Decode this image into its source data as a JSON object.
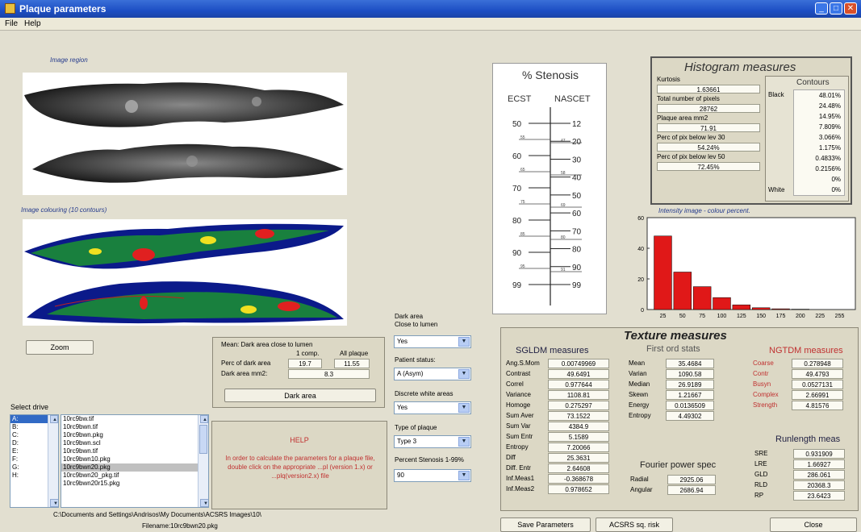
{
  "window": {
    "title": "Plaque parameters"
  },
  "menu": [
    "File",
    "Help"
  ],
  "image_region_label": "Image region",
  "colouring_label": "Image colouring (10 contours)",
  "zoom_label": "Zoom",
  "dark_area": {
    "title": "Mean: Dark area close to lumen",
    "col1": "1 comp.",
    "col2": "All plaque",
    "perc_label": "Perc of dark area",
    "perc_1": "19.7",
    "perc_all": "11.55",
    "mm2_label": "Dark area mm2:",
    "mm2": "8.3",
    "button": "Dark area"
  },
  "select_drive_label": "Select drive",
  "drives": [
    "A:",
    "B:",
    "C:",
    "D:",
    "E:",
    "F:",
    "G:",
    "H:"
  ],
  "files": [
    "10rc9bw.tif",
    "10rc9bwn.tif",
    "10rc9bwn.pkg",
    "10rc9bwn.scl",
    "10rc9bwn.tif",
    "10rc9bwn10.pkg",
    "10rc9bwn20.pkg",
    "10rc9bwn20_pkg.tif",
    "10rc9bwn20r15.pkg"
  ],
  "help": {
    "title": "HELP",
    "text": "In order to calculate the parameters for a plaque file, double click on the appropriate ...pl (version 1.x) or ...plq(version2.x) file"
  },
  "path_text": "C:\\Documents and Settings\\Andrisos\\My Documents\\ACSRS Images\\10\\",
  "filename_text": "Filename:10rc9bwn20.pkg",
  "dropdowns": {
    "dark_close_label1": "Dark area",
    "dark_close_label2": "Close to lumen",
    "dark_close_value": "Yes",
    "patient_label": "Patient status:",
    "patient_value": "A (Asym)",
    "discrete_label": "Discrete white areas",
    "discrete_value": "Yes",
    "type_label": "Type of plaque",
    "type_value": "Type 3",
    "stenosis_label": "Percent Stenosis 1-99%",
    "stenosis_value": "90"
  },
  "stenosis": {
    "title": "% Stenosis",
    "left_head": "ECST",
    "right_head": "NASCET",
    "left_ticks": [
      "50",
      "60",
      "70",
      "80",
      "90",
      "99"
    ],
    "right_ticks": [
      "12",
      "20",
      "30",
      "40",
      "50",
      "60",
      "70",
      "80",
      "90",
      "99"
    ],
    "minor_left": [
      "55",
      "65",
      "75",
      "85",
      "95"
    ],
    "minor_right": [
      "47",
      "58",
      "69",
      "80",
      "91"
    ]
  },
  "histogram": {
    "title": "Histogram measures",
    "kurtosis_label": "Kurtosis",
    "kurtosis": "1.63661",
    "total_label": "Total number of pixels",
    "total": "28762",
    "area_label": "Plaque area mm2",
    "area": "71.91",
    "perc30_label": "Perc of pix below lev 30",
    "perc30": "54.24%",
    "perc50_label": "Perc of pix below lev 50",
    "perc50": "72.45%",
    "contours_title": "Contours",
    "black_label": "Black",
    "white_label": "White",
    "contours": [
      "48.01%",
      "24.48%",
      "14.95%",
      "7.809%",
      "3.066%",
      "1.175%",
      "0.4833%",
      "0.2156%",
      "0%",
      "0%"
    ]
  },
  "intensity_title": "Intensity image - colour percent.",
  "chart_data": {
    "type": "bar",
    "title": "Intensity image - colour percent.",
    "categories": [
      "25",
      "50",
      "75",
      "100",
      "125",
      "150",
      "175",
      "200",
      "225",
      "255"
    ],
    "values": [
      48.01,
      24.48,
      14.95,
      7.809,
      3.066,
      1.175,
      0.4833,
      0.2156,
      0,
      0
    ],
    "ylim": [
      0,
      60
    ],
    "yticks": [
      "0",
      "20",
      "40",
      "60"
    ],
    "xticks": [
      "25",
      "50",
      "75",
      "100",
      "125",
      "150",
      "175",
      "200",
      "225",
      "255"
    ],
    "colors": {
      "bar": "#e01818"
    }
  },
  "texture": {
    "title": "Texture measures",
    "sgldm_title": "SGLDM measures",
    "sgldm": [
      {
        "label": "Ang.S.Mom",
        "value": "0.00749969"
      },
      {
        "label": "Contrast",
        "value": "49.6491"
      },
      {
        "label": "Correl",
        "value": "0.977644"
      },
      {
        "label": "Variance",
        "value": "1108.81"
      },
      {
        "label": "Homoge",
        "value": "0.275297"
      },
      {
        "label": "Sum Aver",
        "value": "73.1522"
      },
      {
        "label": "Sum Var",
        "value": "4384.9"
      },
      {
        "label": "Sum Entr",
        "value": "5.1589"
      },
      {
        "label": "Entropy",
        "value": "7.20066"
      },
      {
        "label": "Diff",
        "value": "25.3631"
      },
      {
        "label": "Diff. Entr",
        "value": "2.64608"
      },
      {
        "label": "Inf.Meas1",
        "value": "-0.368678"
      },
      {
        "label": "Inf.Meas2",
        "value": "0.978652"
      }
    ],
    "fos_title": "First ord stats",
    "fos": [
      {
        "label": "Mean",
        "value": "35.4684"
      },
      {
        "label": "Varian",
        "value": "1090.58"
      },
      {
        "label": "Median",
        "value": "26.9189"
      },
      {
        "label": "Skewn",
        "value": "1.21667"
      },
      {
        "label": "Energy",
        "value": "0.0136509"
      },
      {
        "label": "Entropy",
        "value": "4.49302"
      }
    ],
    "ngtdm_title": "NGTDM measures",
    "ngtdm": [
      {
        "label": "Coarse",
        "value": "0.278948"
      },
      {
        "label": "Contr",
        "value": "49.4793"
      },
      {
        "label": "Busyn",
        "value": "0.0527131"
      },
      {
        "label": "Complex",
        "value": "2.66991"
      },
      {
        "label": "Strength",
        "value": "4.81576"
      }
    ],
    "fourier_title": "Fourier power spec",
    "fourier": [
      {
        "label": "Radial",
        "value": "2925.06"
      },
      {
        "label": "Angular",
        "value": "2686.94"
      }
    ],
    "runlength_title": "Runlength meas",
    "runlength": [
      {
        "label": "SRE",
        "value": "0.931909"
      },
      {
        "label": "LRE",
        "value": "1.66927"
      },
      {
        "label": "GLD",
        "value": "286.061"
      },
      {
        "label": "RLD",
        "value": "20368.3"
      },
      {
        "label": "RP",
        "value": "23.6423"
      }
    ]
  },
  "buttons": {
    "save": "Save Parameters",
    "acsrs": "ACSRS sq. risk",
    "close": "Close"
  }
}
